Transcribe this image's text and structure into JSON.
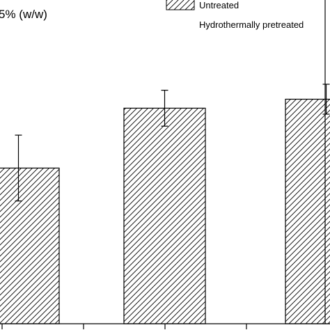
{
  "chart_data": {
    "type": "bar",
    "title": "",
    "ylabel_fragment": "5% (w/w)",
    "categories": [
      "",
      "",
      ""
    ],
    "series": [
      {
        "name": "Untreated",
        "values": [
          0.52,
          0.72,
          0.75
        ],
        "errors": [
          0.11,
          0.06,
          0.05
        ]
      }
    ],
    "legend": {
      "placement": "top-right",
      "entries": [
        "Untreated",
        "Hydrothermally pretreated"
      ]
    },
    "fill_pattern": "diagonal-hatch",
    "ylim": [
      0,
      1
    ]
  },
  "colors": {
    "bar_fill": "#ffffff",
    "bar_stroke": "#000000",
    "hatch": "#000000",
    "axis": "#000000"
  }
}
